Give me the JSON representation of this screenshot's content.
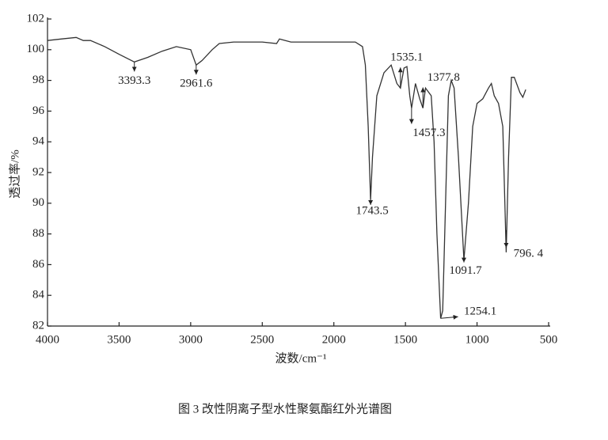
{
  "chart_data": {
    "type": "line",
    "caption": "图 3   改性阴离子型水性聚氨酯红外光谱图",
    "x_label": "波数/cm⁻¹",
    "y_label": "透过率/%",
    "x": [
      4000,
      3900,
      3800,
      3750,
      3700,
      3600,
      3500,
      3393.3,
      3300,
      3200,
      3100,
      3000,
      2961.6,
      2920,
      2850,
      2800,
      2700,
      2500,
      2400,
      2380,
      2300,
      2000,
      1850,
      1800,
      1780,
      1760,
      1743.5,
      1730,
      1700,
      1650,
      1600,
      1560,
      1535.1,
      1510,
      1490,
      1470,
      1457.3,
      1430,
      1400,
      1377.8,
      1360,
      1320,
      1300,
      1280,
      1254.1,
      1240,
      1220,
      1200,
      1180,
      1160,
      1130,
      1091.7,
      1060,
      1030,
      1000,
      960,
      920,
      900,
      880,
      850,
      820,
      796.4,
      780,
      760,
      740,
      700,
      680,
      660
    ],
    "values": [
      100.6,
      100.7,
      100.8,
      100.6,
      100.6,
      100.2,
      99.7,
      99.2,
      99.5,
      99.9,
      100.2,
      100.0,
      99.0,
      99.3,
      100.0,
      100.4,
      100.5,
      100.5,
      100.4,
      100.7,
      100.5,
      100.5,
      100.5,
      100.2,
      99.0,
      95.0,
      90.2,
      93.0,
      97.0,
      98.5,
      99.0,
      97.8,
      97.5,
      98.8,
      98.9,
      97.0,
      96.2,
      97.8,
      96.8,
      96.2,
      97.5,
      97.0,
      94.0,
      88.0,
      82.5,
      83.0,
      90.0,
      97.0,
      98.0,
      97.5,
      93.0,
      86.3,
      90.0,
      95.0,
      96.5,
      96.8,
      97.5,
      97.8,
      97.0,
      96.5,
      95.0,
      86.8,
      93.0,
      98.2,
      98.2,
      97.2,
      96.9,
      97.4
    ],
    "color": "#333333",
    "annotations": [
      "3393.3",
      "2961.6",
      "1535.1",
      "1457.3",
      "1377.8",
      "1743.5",
      "1254.1",
      "1091.7",
      "796. 4"
    ],
    "xlim": [
      4000,
      500
    ],
    "xticks": [
      4000,
      3500,
      3000,
      2500,
      2000,
      1500,
      1000,
      500
    ],
    "ylim": [
      82,
      102
    ],
    "yticks": [
      82,
      84,
      86,
      88,
      90,
      92,
      94,
      96,
      98,
      100,
      102
    ]
  }
}
